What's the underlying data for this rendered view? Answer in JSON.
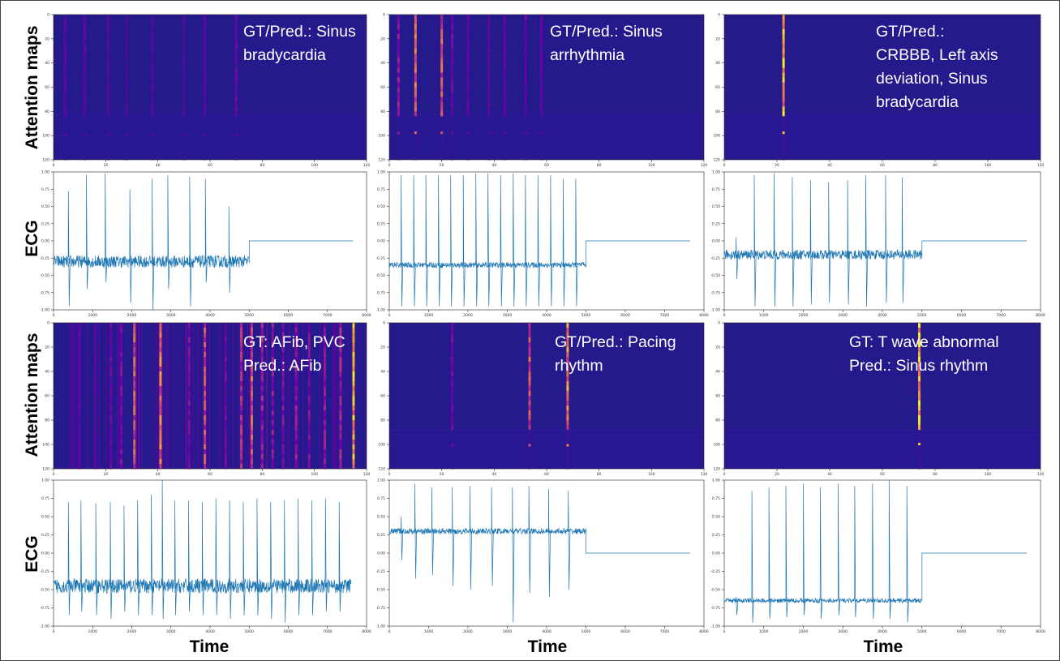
{
  "row_labels": {
    "attention": "Attention maps",
    "ecg": "ECG"
  },
  "x_label": "Time",
  "colors": {
    "heat_bg": "#241a8c",
    "ecg_line": "#1f77b4",
    "annotation": "#ffffff"
  },
  "chart_data": [
    {
      "id": "attn-1",
      "type": "heatmap",
      "title": "",
      "xlim": [
        0,
        120
      ],
      "ylim": [
        0,
        120
      ],
      "xticks": [
        0,
        20,
        40,
        60,
        80,
        100,
        120
      ],
      "yticks": [
        0,
        20,
        40,
        60,
        80,
        100,
        120
      ],
      "annotation": [
        "GT/Pred.: Sinus",
        "bradycardia"
      ],
      "hot_columns": [
        {
          "x": 4.5,
          "v": 0.3
        },
        {
          "x": 12,
          "v": 0.28
        },
        {
          "x": 21,
          "v": 0.25
        },
        {
          "x": 28,
          "v": 0.2
        },
        {
          "x": 38,
          "v": 0.22
        },
        {
          "x": 50,
          "v": 0.2
        },
        {
          "x": 58,
          "v": 0.25
        },
        {
          "x": 70,
          "v": 0.33
        }
      ],
      "band_rows": [
        82,
        100
      ]
    },
    {
      "id": "attn-2",
      "type": "heatmap",
      "title": "",
      "xlim": [
        0,
        120
      ],
      "ylim": [
        0,
        120
      ],
      "xticks": [
        0,
        20,
        40,
        60,
        80,
        100,
        120
      ],
      "yticks": [
        0,
        20,
        40,
        60,
        80,
        100,
        120
      ],
      "annotation": [
        "GT/Pred.: Sinus",
        "arrhythmia"
      ],
      "hot_columns": [
        {
          "x": 3.5,
          "v": 0.45
        },
        {
          "x": 10,
          "v": 0.8
        },
        {
          "x": 20,
          "v": 0.7
        },
        {
          "x": 24,
          "v": 0.35
        },
        {
          "x": 30,
          "v": 0.3
        },
        {
          "x": 38,
          "v": 0.3
        },
        {
          "x": 44,
          "v": 0.3
        },
        {
          "x": 52,
          "v": 0.32
        },
        {
          "x": 58,
          "v": 0.3
        }
      ],
      "band_rows": [
        82,
        98
      ]
    },
    {
      "id": "attn-3",
      "type": "heatmap",
      "title": "",
      "xlim": [
        0,
        120
      ],
      "ylim": [
        0,
        120
      ],
      "xticks": [
        0,
        20,
        40,
        60,
        80,
        100,
        120
      ],
      "yticks": [
        0,
        20,
        40,
        60,
        80,
        100,
        120
      ],
      "annotation": [
        "GT/Pred.:",
        "CRBBB, Left axis",
        "deviation, Sinus",
        "bradycardia"
      ],
      "hot_columns": [
        {
          "x": 22.5,
          "v": 1.0
        }
      ],
      "band_rows": [
        82,
        98
      ]
    },
    {
      "id": "ecg-1",
      "type": "line",
      "title": "",
      "xlim": [
        0,
        8000
      ],
      "ylim": [
        -1.0,
        1.0
      ],
      "xticks": [
        0,
        1000,
        2000,
        3000,
        4000,
        5000,
        6000,
        7000,
        8000
      ],
      "yticks": [
        -1.0,
        -0.75,
        -0.5,
        -0.25,
        0.0,
        0.25,
        0.5,
        0.75,
        1.0
      ],
      "baseline": -0.3,
      "end_x": 5000,
      "end_level": 0.0,
      "noise": 0.09,
      "beats": [
        {
          "x": 380,
          "peak": 0.72,
          "trough": -0.95
        },
        {
          "x": 840,
          "peak": 0.96,
          "trough": -0.7
        },
        {
          "x": 1320,
          "peak": 0.98,
          "trough": -0.6
        },
        {
          "x": 1950,
          "peak": 0.75,
          "trough": -0.9
        },
        {
          "x": 2520,
          "peak": 0.9,
          "trough": -1.0
        },
        {
          "x": 2920,
          "peak": 0.95,
          "trough": -0.7
        },
        {
          "x": 3480,
          "peak": 0.93,
          "trough": -0.95
        },
        {
          "x": 3880,
          "peak": 0.9,
          "trough": -0.6
        },
        {
          "x": 4480,
          "peak": 0.5,
          "trough": -0.75
        }
      ]
    },
    {
      "id": "ecg-2",
      "type": "line",
      "title": "",
      "xlim": [
        0,
        8000
      ],
      "ylim": [
        -1.0,
        1.0
      ],
      "xticks": [
        0,
        1000,
        2000,
        3000,
        4000,
        5000,
        6000,
        7000,
        8000
      ],
      "yticks": [
        -1.0,
        -0.75,
        -0.5,
        -0.25,
        0.0,
        0.25,
        0.5,
        0.75,
        1.0
      ],
      "baseline": -0.35,
      "end_x": 5000,
      "end_level": 0.0,
      "noise": 0.04,
      "beats": [
        {
          "x": 300,
          "peak": 0.95,
          "trough": -0.95
        },
        {
          "x": 620,
          "peak": 0.95,
          "trough": -0.95
        },
        {
          "x": 930,
          "peak": 0.95,
          "trough": -0.95
        },
        {
          "x": 1250,
          "peak": 0.95,
          "trough": -0.95
        },
        {
          "x": 1560,
          "peak": 0.95,
          "trough": -0.95
        },
        {
          "x": 1880,
          "peak": 0.95,
          "trough": -0.95
        },
        {
          "x": 2200,
          "peak": 0.98,
          "trough": -0.95
        },
        {
          "x": 2510,
          "peak": 0.98,
          "trough": -0.95
        },
        {
          "x": 2830,
          "peak": 0.95,
          "trough": -0.95
        },
        {
          "x": 3150,
          "peak": 0.98,
          "trough": -0.95
        },
        {
          "x": 3460,
          "peak": 0.95,
          "trough": -0.95
        },
        {
          "x": 3780,
          "peak": 0.95,
          "trough": -0.95
        },
        {
          "x": 4100,
          "peak": 0.95,
          "trough": -0.95
        },
        {
          "x": 4420,
          "peak": 0.9,
          "trough": -0.95
        },
        {
          "x": 4740,
          "peak": 0.9,
          "trough": -0.95
        }
      ]
    },
    {
      "id": "ecg-3",
      "type": "line",
      "title": "",
      "xlim": [
        0,
        8000
      ],
      "ylim": [
        -1.0,
        1.0
      ],
      "xticks": [
        0,
        1000,
        2000,
        3000,
        4000,
        5000,
        6000,
        7000,
        8000
      ],
      "yticks": [
        -1.0,
        -0.75,
        -0.5,
        -0.25,
        0.0,
        0.25,
        0.5,
        0.75,
        1.0
      ],
      "baseline": -0.2,
      "end_x": 5000,
      "end_level": 0.0,
      "noise": 0.07,
      "beats": [
        {
          "x": 300,
          "peak": 0.05,
          "trough": -0.55
        },
        {
          "x": 760,
          "peak": 0.95,
          "trough": -0.95
        },
        {
          "x": 1260,
          "peak": 0.98,
          "trough": -0.95
        },
        {
          "x": 1720,
          "peak": 0.92,
          "trough": -0.95
        },
        {
          "x": 2180,
          "peak": 0.88,
          "trough": -0.92
        },
        {
          "x": 2640,
          "peak": 0.85,
          "trough": -0.9
        },
        {
          "x": 3120,
          "peak": 0.88,
          "trough": -0.92
        },
        {
          "x": 3580,
          "peak": 0.95,
          "trough": -0.95
        },
        {
          "x": 4080,
          "peak": 0.95,
          "trough": -0.9
        },
        {
          "x": 4500,
          "peak": 0.92,
          "trough": -0.9
        }
      ]
    },
    {
      "id": "attn-4",
      "type": "heatmap",
      "title": "",
      "xlim": [
        0,
        120
      ],
      "ylim": [
        0,
        120
      ],
      "xticks": [
        0,
        20,
        40,
        60,
        80,
        100,
        120
      ],
      "yticks": [
        0,
        20,
        40,
        60,
        80,
        100,
        120
      ],
      "annotation": [
        "GT: AFib, PVC",
        "Pred.: AFib"
      ],
      "hot_columns": [
        {
          "x": 10,
          "v": 0.3
        },
        {
          "x": 16,
          "v": 0.3
        },
        {
          "x": 22,
          "v": 0.35
        },
        {
          "x": 26,
          "v": 0.4
        },
        {
          "x": 31,
          "v": 0.7
        },
        {
          "x": 41,
          "v": 0.8
        },
        {
          "x": 52,
          "v": 0.4
        },
        {
          "x": 58,
          "v": 0.65
        },
        {
          "x": 66,
          "v": 0.35
        },
        {
          "x": 72,
          "v": 0.55
        },
        {
          "x": 76,
          "v": 0.75
        },
        {
          "x": 80,
          "v": 0.5
        },
        {
          "x": 84,
          "v": 0.45
        },
        {
          "x": 88,
          "v": 0.4
        },
        {
          "x": 93,
          "v": 0.45
        },
        {
          "x": 98,
          "v": 0.4
        },
        {
          "x": 104,
          "v": 0.45
        },
        {
          "x": 110,
          "v": 0.5
        },
        {
          "x": 115,
          "v": 0.95
        }
      ],
      "band_rows": [],
      "busy": true
    },
    {
      "id": "attn-5",
      "type": "heatmap",
      "title": "",
      "xlim": [
        0,
        120
      ],
      "ylim": [
        0,
        120
      ],
      "xticks": [
        0,
        20,
        40,
        60,
        80,
        100,
        120
      ],
      "yticks": [
        0,
        20,
        40,
        60,
        80,
        100,
        120
      ],
      "annotation": [
        "GT/Pred.: Pacing",
        "rhythm"
      ],
      "hot_columns": [
        {
          "x": 24,
          "v": 0.35
        },
        {
          "x": 53.5,
          "v": 0.7
        },
        {
          "x": 68,
          "v": 0.85
        }
      ],
      "band_rows": [
        88,
        101
      ]
    },
    {
      "id": "attn-6",
      "type": "heatmap",
      "title": "",
      "xlim": [
        0,
        120
      ],
      "ylim": [
        0,
        120
      ],
      "xticks": [
        0,
        20,
        40,
        60,
        80,
        100,
        120
      ],
      "yticks": [
        0,
        20,
        40,
        60,
        80,
        100,
        120
      ],
      "annotation": [
        "GT: T wave abnormal",
        "Pred.: Sinus rhythm"
      ],
      "hot_columns": [
        {
          "x": 74,
          "v": 1.0
        }
      ],
      "band_rows": [
        88,
        100
      ]
    },
    {
      "id": "ecg-4",
      "type": "line",
      "title": "",
      "xlim": [
        0,
        8000
      ],
      "ylim": [
        -1.0,
        1.0
      ],
      "xticks": [
        0,
        1000,
        2000,
        3000,
        4000,
        5000,
        6000,
        7000,
        8000
      ],
      "yticks": [
        -1.0,
        -0.75,
        -0.5,
        -0.25,
        0.0,
        0.25,
        0.5,
        0.75,
        1.0
      ],
      "baseline": -0.45,
      "end_x": 7600,
      "end_level": -0.45,
      "noise": 0.1,
      "beats": [
        {
          "x": 380,
          "peak": 0.7,
          "trough": -0.85
        },
        {
          "x": 700,
          "peak": 0.72,
          "trough": -0.8
        },
        {
          "x": 1080,
          "peak": 0.68,
          "trough": -0.85
        },
        {
          "x": 1450,
          "peak": 0.7,
          "trough": -0.9
        },
        {
          "x": 1800,
          "peak": 0.65,
          "trough": -0.8
        },
        {
          "x": 2150,
          "peak": 0.72,
          "trough": -0.85
        },
        {
          "x": 2500,
          "peak": 0.8,
          "trough": -0.85
        },
        {
          "x": 2780,
          "peak": 1.0,
          "trough": -0.9
        },
        {
          "x": 3100,
          "peak": 0.72,
          "trough": -0.85
        },
        {
          "x": 3450,
          "peak": 0.72,
          "trough": -0.8
        },
        {
          "x": 3800,
          "peak": 0.7,
          "trough": -0.85
        },
        {
          "x": 4150,
          "peak": 0.75,
          "trough": -0.85
        },
        {
          "x": 4500,
          "peak": 0.72,
          "trough": -0.9
        },
        {
          "x": 4850,
          "peak": 0.7,
          "trough": -0.85
        },
        {
          "x": 5200,
          "peak": 0.75,
          "trough": -0.85
        },
        {
          "x": 5550,
          "peak": 0.7,
          "trough": -0.9
        },
        {
          "x": 5900,
          "peak": 0.72,
          "trough": -0.95
        },
        {
          "x": 6250,
          "peak": 0.75,
          "trough": -0.85
        },
        {
          "x": 6600,
          "peak": 0.72,
          "trough": -0.85
        },
        {
          "x": 6950,
          "peak": 0.75,
          "trough": -0.8
        },
        {
          "x": 7300,
          "peak": 0.7,
          "trough": -0.8
        }
      ]
    },
    {
      "id": "ecg-5",
      "type": "line",
      "title": "",
      "xlim": [
        0,
        8000
      ],
      "ylim": [
        -1.0,
        1.0
      ],
      "xticks": [
        0,
        1000,
        2000,
        3000,
        4000,
        5000,
        6000,
        7000,
        8000
      ],
      "yticks": [
        -1.0,
        -0.75,
        -0.5,
        -0.25,
        0.0,
        0.25,
        0.5,
        0.75,
        1.0
      ],
      "baseline": 0.3,
      "end_x": 5000,
      "end_level": 0.0,
      "noise": 0.04,
      "beats": [
        {
          "x": 300,
          "peak": 0.5,
          "trough": -0.1
        },
        {
          "x": 650,
          "peak": 0.95,
          "trough": -0.35
        },
        {
          "x": 1080,
          "peak": 0.9,
          "trough": -0.3
        },
        {
          "x": 1600,
          "peak": 0.9,
          "trough": -0.45
        },
        {
          "x": 2050,
          "peak": 0.92,
          "trough": -0.5
        },
        {
          "x": 2600,
          "peak": 0.9,
          "trough": -0.45
        },
        {
          "x": 3130,
          "peak": 0.9,
          "trough": -0.95
        },
        {
          "x": 3550,
          "peak": 0.92,
          "trough": -0.55
        },
        {
          "x": 4050,
          "peak": 0.88,
          "trough": -0.6
        },
        {
          "x": 4550,
          "peak": 0.85,
          "trough": -0.5
        }
      ]
    },
    {
      "id": "ecg-6",
      "type": "line",
      "title": "",
      "xlim": [
        0,
        8000
      ],
      "ylim": [
        -1.0,
        1.0
      ],
      "xticks": [
        0,
        1000,
        2000,
        3000,
        4000,
        5000,
        6000,
        7000,
        8000
      ],
      "yticks": [
        -1.0,
        -0.75,
        -0.5,
        -0.25,
        0.0,
        0.25,
        0.5,
        0.75,
        1.0
      ],
      "baseline": -0.65,
      "end_x": 5000,
      "end_level": 0.0,
      "noise": 0.03,
      "beats": [
        {
          "x": 300,
          "peak": -0.6,
          "trough": -0.85
        },
        {
          "x": 700,
          "peak": 0.85,
          "trough": -0.95
        },
        {
          "x": 1130,
          "peak": 0.9,
          "trough": -0.9
        },
        {
          "x": 1560,
          "peak": 0.92,
          "trough": -0.88
        },
        {
          "x": 2000,
          "peak": 0.95,
          "trough": -0.85
        },
        {
          "x": 2430,
          "peak": 0.9,
          "trough": -0.9
        },
        {
          "x": 2880,
          "peak": 0.95,
          "trough": -0.85
        },
        {
          "x": 3300,
          "peak": 0.92,
          "trough": -0.88
        },
        {
          "x": 3750,
          "peak": 0.95,
          "trough": -0.9
        },
        {
          "x": 4170,
          "peak": 1.0,
          "trough": -0.9
        },
        {
          "x": 4620,
          "peak": 0.92,
          "trough": -0.95
        }
      ]
    }
  ]
}
